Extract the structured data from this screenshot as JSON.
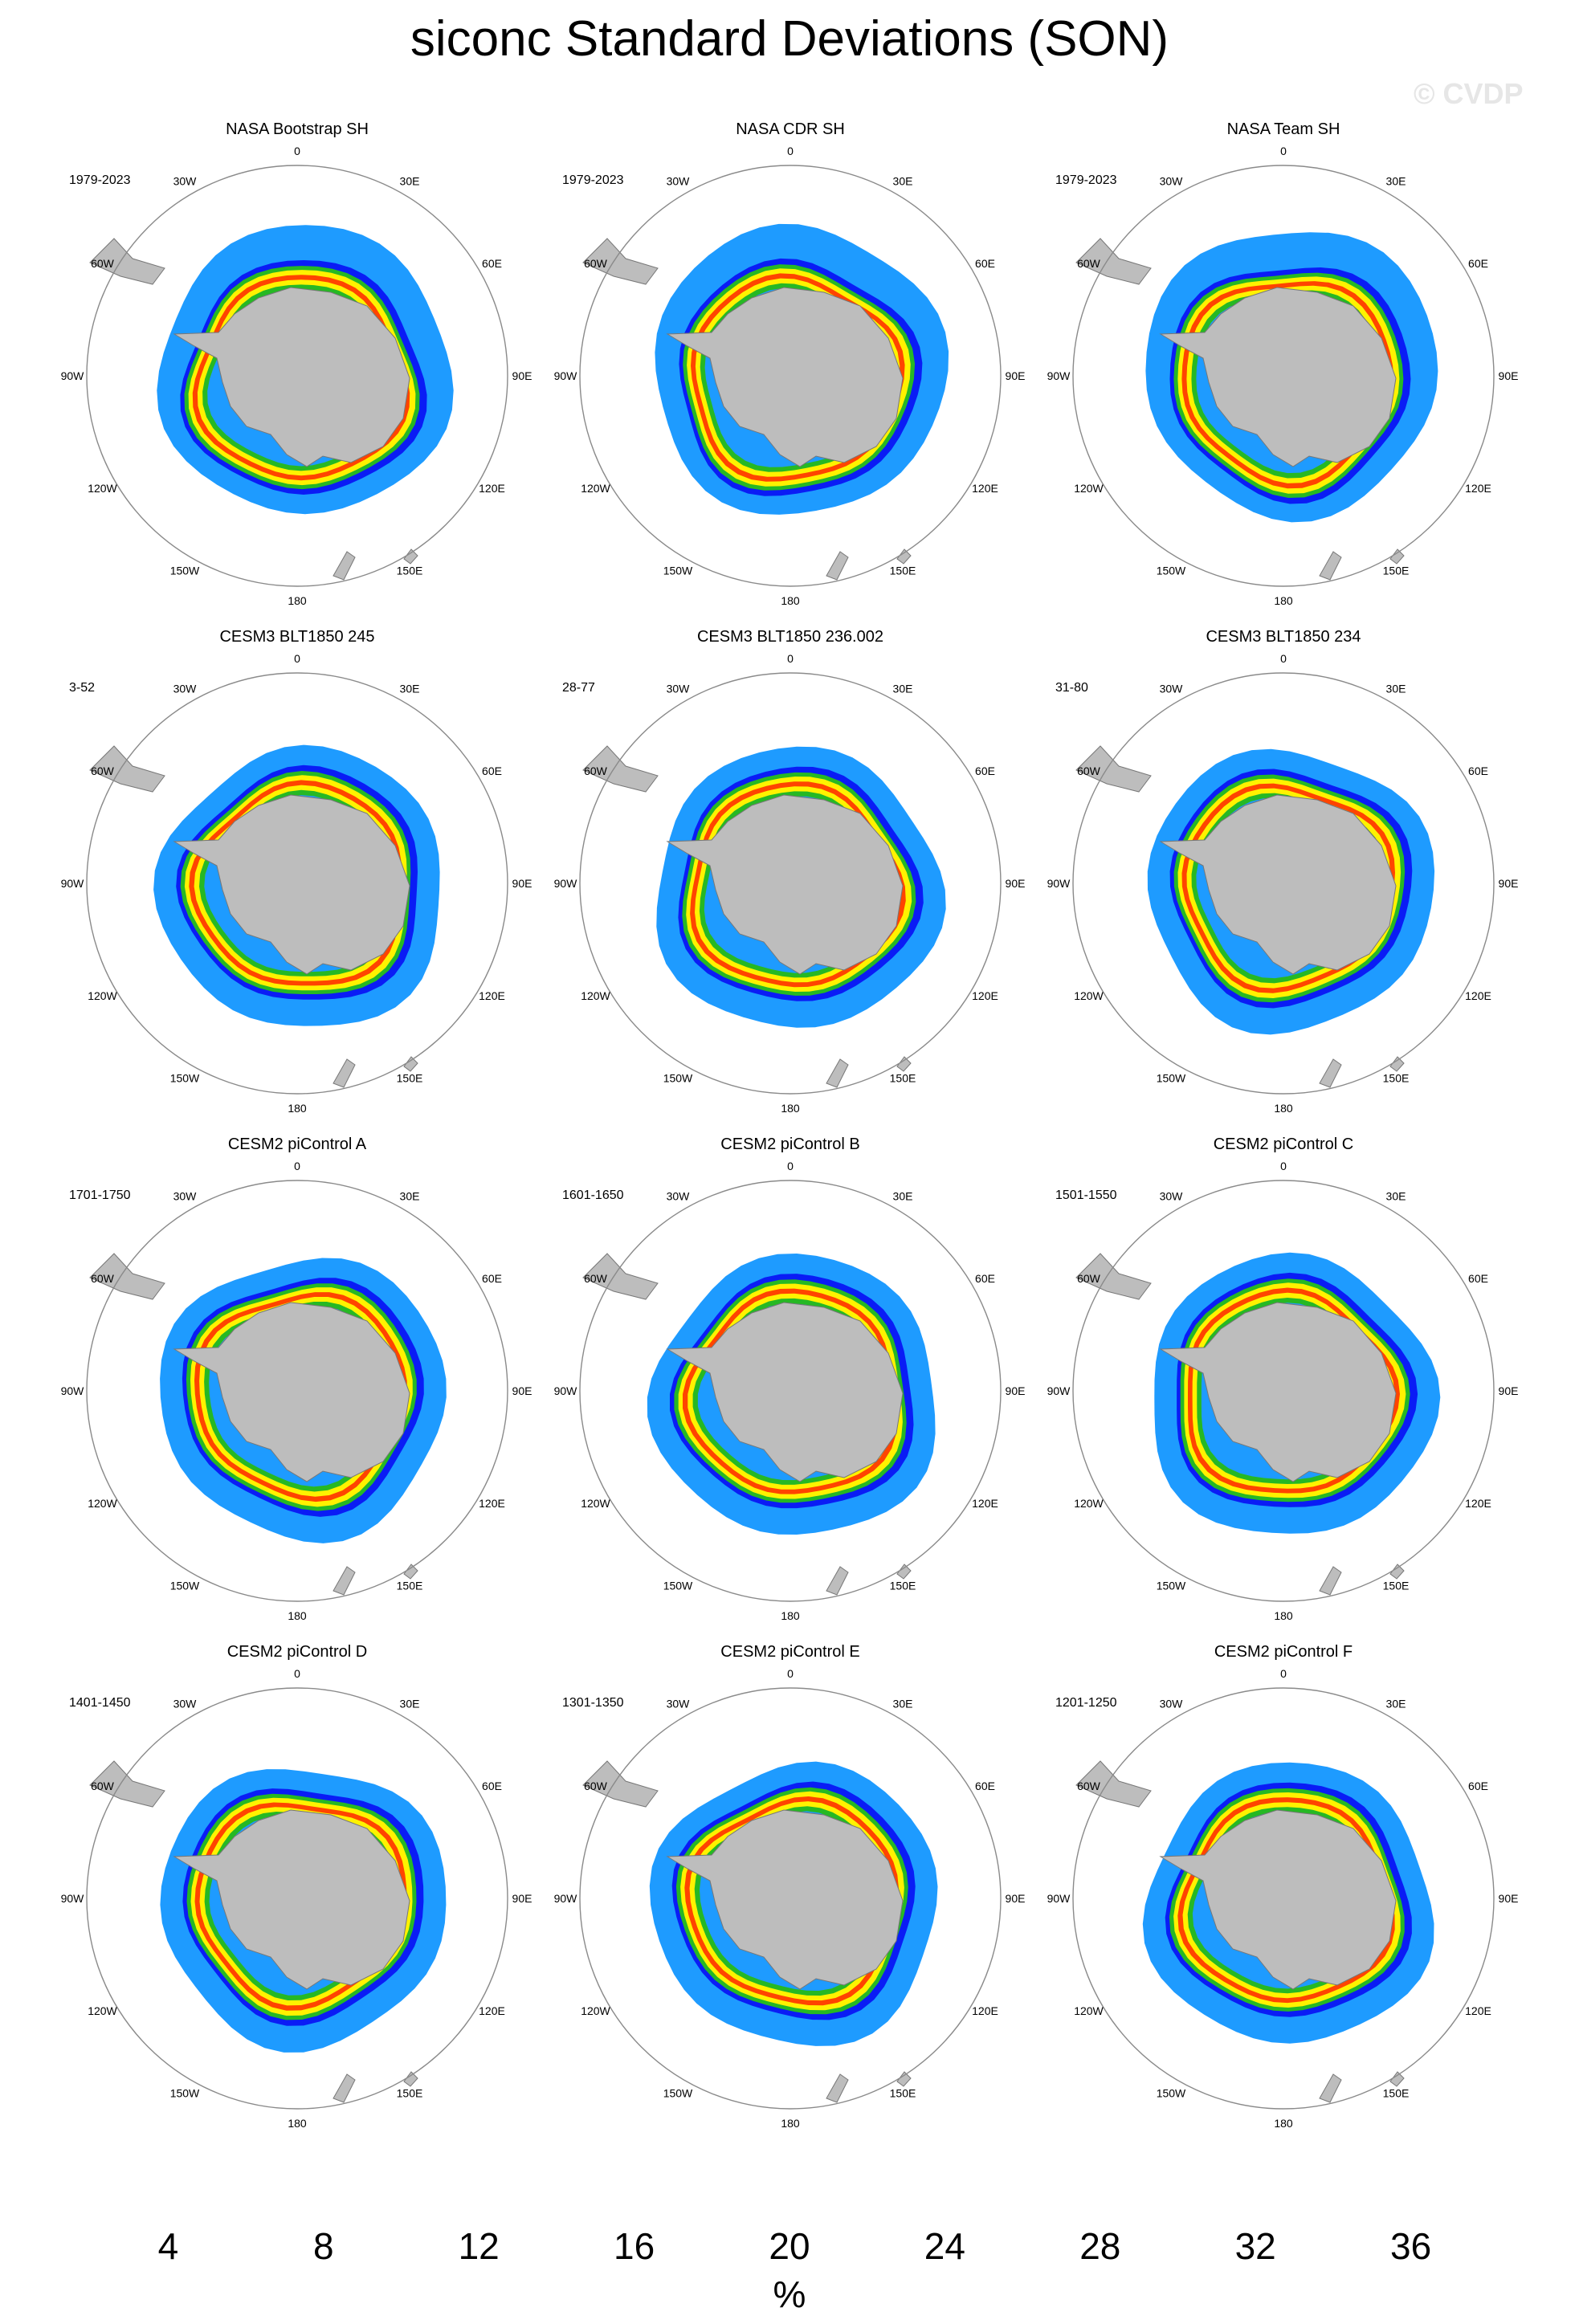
{
  "title": "siconc Standard Deviations (SON)",
  "watermark": "© CVDP",
  "lon_labels": [
    "0",
    "30E",
    "60E",
    "90E",
    "120E",
    "150E",
    "180",
    "150W",
    "120W",
    "90W",
    "60W",
    "30W"
  ],
  "panels": [
    {
      "title": "NASA Bootstrap SH",
      "years": "1979-2023",
      "style": "obs"
    },
    {
      "title": "NASA CDR SH",
      "years": "1979-2023",
      "style": "obs"
    },
    {
      "title": "NASA Team SH",
      "years": "1979-2023",
      "style": "obs"
    },
    {
      "title": "CESM3 BLT1850 245",
      "years": "3-52",
      "style": "model"
    },
    {
      "title": "CESM3 BLT1850 236.002",
      "years": "28-77",
      "style": "model"
    },
    {
      "title": "CESM3 BLT1850 234",
      "years": "31-80",
      "style": "model"
    },
    {
      "title": "CESM2 piControl A",
      "years": "1701-1750",
      "style": "model"
    },
    {
      "title": "CESM2 piControl B",
      "years": "1601-1650",
      "style": "model"
    },
    {
      "title": "CESM2 piControl C",
      "years": "1501-1550",
      "style": "model"
    },
    {
      "title": "CESM2 piControl D",
      "years": "1401-1450",
      "style": "model"
    },
    {
      "title": "CESM2 piControl E",
      "years": "1301-1350",
      "style": "model"
    },
    {
      "title": "CESM2 piControl F",
      "years": "1201-1250",
      "style": "model"
    }
  ],
  "colorbar": {
    "colors": [
      "#1e9bff",
      "#0a1cf5",
      "#26b824",
      "#b4e61e",
      "#fff200",
      "#ffb000",
      "#ff4400",
      "#c4003a",
      "#820069",
      "#c9aad8"
    ],
    "ticks": [
      "4",
      "8",
      "12",
      "16",
      "20",
      "24",
      "28",
      "32",
      "36"
    ],
    "units": "%"
  },
  "land_color": "#bdbdbd"
}
